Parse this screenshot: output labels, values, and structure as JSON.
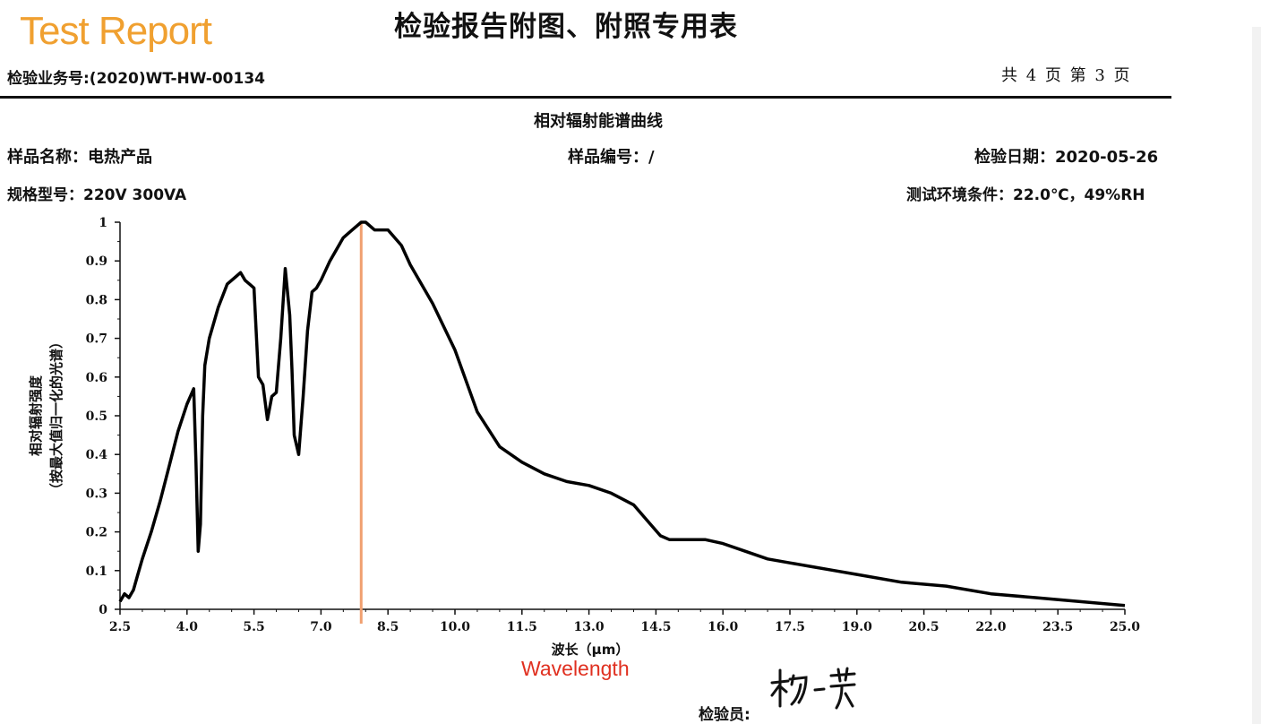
{
  "header": {
    "brand": "Test Report",
    "title": "检验报告附图、附照专用表",
    "business_no": "检验业务号:(2020)WT-HW-00134",
    "page_info": "共 4 页 第 3 页"
  },
  "info": {
    "chart_title": "相对辐射能谱曲线",
    "sample_name": "样品名称：电热产品",
    "sample_no": "样品编号：/",
    "test_date": "检验日期：2020-05-26",
    "spec": "规格型号：220V 300VA",
    "environment": "测试环境条件：22.0℃，49%RH"
  },
  "footer": {
    "inspector_label": "检验员:",
    "signature": "杨一芳"
  },
  "chart_data": {
    "type": "line",
    "title": "相对辐射能谱曲线",
    "xlabel": "波长（μm）",
    "xlabel_annotation": "Wavelength",
    "ylabel_line1": "相对辐射强度",
    "ylabel_line2": "（按最大值归一化的光谱）",
    "xlim": [
      2.5,
      25.0
    ],
    "ylim": [
      0,
      1
    ],
    "xticks": [
      "2.5",
      "4.0",
      "5.5",
      "7.0",
      "8.5",
      "10.0",
      "11.5",
      "13.0",
      "14.5",
      "16.0",
      "17.5",
      "19.0",
      "20.5",
      "22.0",
      "23.5",
      "25.0"
    ],
    "yticks": [
      "0",
      "0.1",
      "0.2",
      "0.3",
      "0.4",
      "0.5",
      "0.6",
      "0.7",
      "0.8",
      "0.9",
      "1"
    ],
    "peak_marker": {
      "x": 7.9,
      "color": "#f0a070"
    },
    "series": [
      {
        "color": "#000000",
        "x": [
          2.5,
          2.6,
          2.7,
          2.8,
          2.9,
          3.0,
          3.2,
          3.4,
          3.6,
          3.8,
          4.0,
          4.15,
          4.2,
          4.25,
          4.3,
          4.35,
          4.4,
          4.5,
          4.7,
          4.9,
          5.1,
          5.2,
          5.3,
          5.4,
          5.5,
          5.6,
          5.7,
          5.8,
          5.9,
          6.0,
          6.1,
          6.2,
          6.3,
          6.35,
          6.4,
          6.5,
          6.6,
          6.7,
          6.8,
          6.9,
          7.0,
          7.2,
          7.5,
          7.7,
          7.9,
          8.0,
          8.2,
          8.5,
          8.8,
          9.0,
          9.5,
          10.0,
          10.5,
          11.0,
          11.5,
          12.0,
          12.5,
          13.0,
          13.5,
          14.0,
          14.3,
          14.6,
          14.8,
          15.2,
          15.6,
          16.0,
          16.5,
          17.0,
          17.5,
          18.0,
          18.5,
          19.0,
          20.0,
          21.0,
          22.0,
          23.0,
          24.0,
          25.0
        ],
        "y": [
          0.02,
          0.04,
          0.03,
          0.05,
          0.09,
          0.13,
          0.2,
          0.28,
          0.37,
          0.46,
          0.53,
          0.57,
          0.38,
          0.15,
          0.22,
          0.5,
          0.63,
          0.7,
          0.78,
          0.84,
          0.86,
          0.87,
          0.85,
          0.84,
          0.83,
          0.6,
          0.58,
          0.49,
          0.55,
          0.56,
          0.7,
          0.88,
          0.76,
          0.62,
          0.45,
          0.4,
          0.55,
          0.72,
          0.82,
          0.83,
          0.85,
          0.9,
          0.96,
          0.98,
          1.0,
          1.0,
          0.98,
          0.98,
          0.94,
          0.89,
          0.79,
          0.67,
          0.51,
          0.42,
          0.38,
          0.35,
          0.33,
          0.32,
          0.3,
          0.27,
          0.23,
          0.19,
          0.18,
          0.18,
          0.18,
          0.17,
          0.15,
          0.13,
          0.12,
          0.11,
          0.1,
          0.09,
          0.07,
          0.06,
          0.04,
          0.03,
          0.02,
          0.01
        ]
      }
    ]
  }
}
